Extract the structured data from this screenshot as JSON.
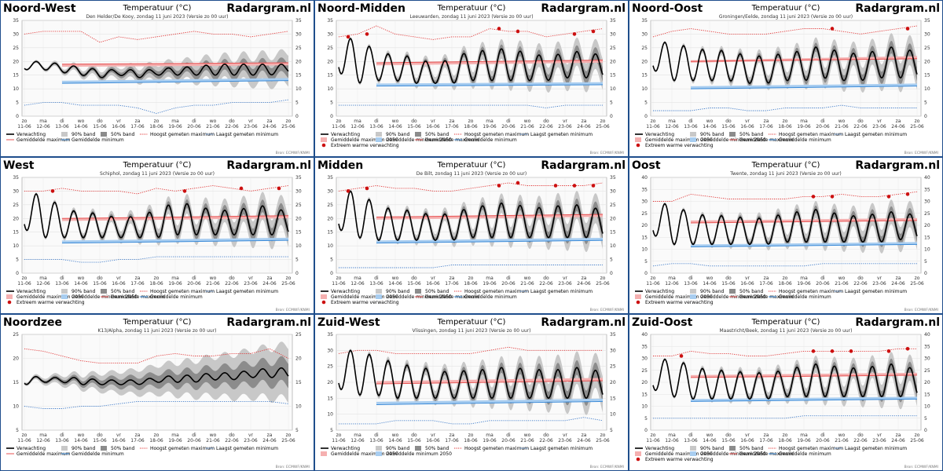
{
  "common": {
    "chart_title": "Temperatuur (°C)",
    "brand": "Radargram.nl",
    "source": "Bron: ECMWF/KNMI",
    "day_labels": [
      "zo",
      "ma",
      "di",
      "wo",
      "do",
      "vr",
      "za",
      "zo",
      "ma",
      "di",
      "wo",
      "do",
      "vr",
      "za",
      "zo"
    ],
    "date_labels": [
      "11-06",
      "12-06",
      "13-06",
      "14-06",
      "15-06",
      "16-06",
      "17-06",
      "18-06",
      "19-06",
      "20-06",
      "21-06",
      "22-06",
      "23-06",
      "24-06",
      "25-06"
    ],
    "legend": {
      "verwachting": "Verwachting",
      "band90": "90% band",
      "band50": "50% band",
      "hoogst": "Hoogst gemeten maximum",
      "laagst": "Laagst gemeten minimum",
      "gem_max_2050": "Gemiddelde maximum 2050",
      "gem_min_2050": "Gemiddelde minimum 2050",
      "gem_max": "Gemiddelde maximum",
      "gem_min": "Gemiddelde minimum",
      "extreem": "Extreem warme verwachting"
    },
    "colors": {
      "forecast": "#000000",
      "band90": "#c8c8c8",
      "band50": "#8c8c8c",
      "record_max": "#e03030",
      "record_min": "#3a78c8",
      "avg_max": "#e85050",
      "avg_min": "#3a8ad8",
      "avg_max_2050": "#f5b0b0",
      "avg_min_2050": "#a8cdf0",
      "extreme": "#cc1010",
      "frame": "#1f4e8c"
    }
  },
  "chart_data": [
    {
      "type": "line",
      "region": "Noord-West",
      "subtitle": "Den Helder/De Kooy, zondag 11 juni 2023 (Versie zo 00 uur)",
      "ylim": [
        0,
        35
      ],
      "yticks": [
        0,
        5,
        10,
        15,
        20,
        25,
        30,
        35
      ],
      "tmax": [
        20,
        20,
        19,
        18,
        17,
        17,
        17,
        17,
        18,
        18,
        19,
        19,
        19,
        19,
        19
      ],
      "tmin": [
        17,
        17,
        16,
        15,
        14,
        15,
        14,
        15,
        15,
        15,
        15,
        15,
        15,
        15,
        16
      ],
      "avg_max": [
        19,
        19.5
      ],
      "avg_min": [
        12,
        13
      ],
      "avg_max_2050": [
        18.5,
        19
      ],
      "avg_min_2050": [
        12.5,
        13.5
      ],
      "record_max": [
        30,
        31,
        31,
        31,
        27,
        29,
        28,
        29,
        30,
        31,
        30,
        30,
        29,
        30,
        31
      ],
      "record_min": [
        4,
        5,
        5,
        4,
        4,
        4,
        3,
        1,
        3,
        4,
        4,
        5,
        5,
        5,
        6
      ],
      "extreme": [],
      "legend_set": "a"
    },
    {
      "type": "line",
      "region": "Noord-Midden",
      "subtitle": "Leeuwarden, zondag 11 juni 2023 (Versie zo 00 uur)",
      "ylim": [
        0,
        35
      ],
      "yticks": [
        0,
        5,
        10,
        15,
        20,
        25,
        30,
        35
      ],
      "tmax": [
        29,
        28,
        24,
        22,
        22,
        19,
        21,
        24,
        24,
        25,
        23,
        22,
        23,
        24,
        22
      ],
      "tmin": [
        16,
        12,
        13,
        13,
        12,
        12,
        12,
        13,
        13,
        13,
        13,
        13,
        14,
        14,
        14
      ],
      "avg_max": [
        19.5,
        20.5
      ],
      "avg_min": [
        11,
        11.5
      ],
      "avg_max_2050": [
        19,
        20
      ],
      "avg_min_2050": [
        11.5,
        12
      ],
      "record_max": [
        29,
        30,
        33,
        30,
        29,
        28,
        29,
        29,
        32,
        31,
        31,
        29,
        30,
        31,
        32
      ],
      "record_min": [
        4,
        4,
        4,
        4,
        4,
        4,
        4,
        4,
        4,
        4,
        4,
        3,
        4,
        4,
        4
      ],
      "extreme": [
        0,
        1,
        8,
        9,
        12,
        13
      ],
      "legend_set": "b"
    },
    {
      "type": "line",
      "region": "Noord-Oost",
      "subtitle": "Groningen/Eelde, zondag 11 juni 2023 (Versie zo 00 uur)",
      "ylim": [
        0,
        35
      ],
      "yticks": [
        0,
        5,
        10,
        15,
        20,
        25,
        30,
        35
      ],
      "tmax": [
        27,
        27,
        25,
        24,
        24,
        22,
        22,
        23,
        24,
        26,
        23,
        23,
        24,
        26,
        23
      ],
      "tmin": [
        17,
        13,
        13,
        13,
        13,
        12,
        12,
        13,
        13,
        14,
        13,
        13,
        14,
        14,
        14
      ],
      "avg_max": [
        20,
        21
      ],
      "avg_min": [
        10,
        11
      ],
      "avg_max_2050": [
        20,
        21.5
      ],
      "avg_min_2050": [
        10.5,
        11.5
      ],
      "record_max": [
        29,
        31,
        32,
        31,
        30,
        30,
        30,
        31,
        32,
        32,
        31,
        30,
        31,
        32,
        33
      ],
      "record_min": [
        2,
        2,
        2,
        3,
        3,
        2,
        2,
        3,
        3,
        3,
        4,
        3,
        3,
        3,
        3
      ],
      "extreme": [
        9,
        13
      ],
      "legend_set": "b"
    },
    {
      "type": "line",
      "region": "West",
      "subtitle": "Schiphol, zondag 11 juni 2023 (Versie zo 00 uur)",
      "ylim": [
        0,
        35
      ],
      "yticks": [
        0,
        5,
        10,
        15,
        20,
        25,
        30,
        35
      ],
      "tmax": [
        29,
        29,
        24,
        22,
        22,
        20,
        21,
        23,
        26,
        25,
        23,
        23,
        24,
        25,
        22
      ],
      "tmin": [
        16,
        13,
        13,
        13,
        13,
        13,
        13,
        13,
        14,
        14,
        14,
        14,
        14,
        14,
        14
      ],
      "avg_max": [
        20,
        21
      ],
      "avg_min": [
        11,
        12
      ],
      "avg_max_2050": [
        19.5,
        20.5
      ],
      "avg_min_2050": [
        11.5,
        12.5
      ],
      "record_max": [
        30,
        30,
        31,
        30,
        30,
        30,
        29,
        31,
        30,
        31,
        32,
        31,
        30,
        31,
        32
      ],
      "record_min": [
        5,
        5,
        5,
        4,
        4,
        5,
        5,
        6,
        6,
        6,
        6,
        6,
        6,
        6,
        6
      ],
      "extreme": [
        1,
        8,
        11,
        13
      ],
      "legend_set": "b"
    },
    {
      "type": "line",
      "region": "Midden",
      "subtitle": "De Bilt, zondag 11 juni 2023 (Versie zo 00 uur)",
      "ylim": [
        0,
        35
      ],
      "yticks": [
        0,
        5,
        10,
        15,
        20,
        25,
        30,
        35
      ],
      "tmax": [
        30,
        30,
        25,
        23,
        23,
        21,
        22,
        24,
        25,
        26,
        24,
        24,
        25,
        25,
        23
      ],
      "tmin": [
        16,
        13,
        12,
        12,
        12,
        12,
        12,
        13,
        13,
        13,
        13,
        13,
        13,
        13,
        13
      ],
      "avg_max": [
        20.5,
        21.5
      ],
      "avg_min": [
        11,
        12
      ],
      "avg_max_2050": [
        20,
        21
      ],
      "avg_min_2050": [
        11.5,
        12.5
      ],
      "record_max": [
        30,
        31,
        32,
        31,
        31,
        30,
        30,
        31,
        32,
        33,
        32,
        32,
        32,
        32,
        33
      ],
      "record_min": [
        2,
        2,
        2,
        2,
        2,
        2,
        3,
        3,
        3,
        3,
        3,
        3,
        3,
        3,
        3
      ],
      "extreme": [
        0,
        1,
        8,
        9,
        11,
        12,
        13
      ],
      "legend_set": "b"
    },
    {
      "type": "line",
      "region": "Oost",
      "subtitle": "Twente, zondag 11 juni 2023 (Versie zo 00 uur)",
      "ylim": [
        0,
        40
      ],
      "yticks": [
        0,
        5,
        10,
        15,
        20,
        25,
        30,
        35,
        40
      ],
      "tmax": [
        29,
        29,
        25,
        24,
        24,
        23,
        23,
        25,
        26,
        27,
        24,
        24,
        25,
        26,
        24
      ],
      "tmin": [
        16,
        12,
        12,
        12,
        12,
        12,
        12,
        13,
        13,
        13,
        13,
        13,
        13,
        14,
        14
      ],
      "avg_max": [
        21,
        22
      ],
      "avg_min": [
        11,
        12
      ],
      "avg_max_2050": [
        21.5,
        22.5
      ],
      "avg_min_2050": [
        11.5,
        12.5
      ],
      "record_max": [
        30,
        30,
        33,
        32,
        31,
        31,
        31,
        31,
        32,
        32,
        33,
        32,
        32,
        33,
        34
      ],
      "record_min": [
        3,
        4,
        4,
        3,
        3,
        3,
        3,
        3,
        3,
        4,
        4,
        4,
        4,
        4,
        4
      ],
      "extreme": [
        8,
        9,
        12,
        13
      ],
      "legend_set": "b"
    },
    {
      "type": "line",
      "region": "Noordzee",
      "subtitle": "K13/Alpha, zondag 11 juni 2023 (Versie zo 00 uur)",
      "ylim": [
        5,
        25
      ],
      "yticks": [
        5,
        10,
        15,
        20,
        25
      ],
      "tmax": [
        16.5,
        16,
        16,
        16,
        15.5,
        15.5,
        15.5,
        16,
        16.5,
        16.5,
        17,
        17,
        17.5,
        18,
        18
      ],
      "tmin": [
        14.5,
        15,
        15,
        14.5,
        14.5,
        14.5,
        14.5,
        15,
        15,
        15,
        15.5,
        15.5,
        16,
        16,
        16
      ],
      "avg_max": [],
      "avg_min": [],
      "avg_max_2050": [],
      "avg_min_2050": [],
      "record_max": [
        22,
        21.5,
        20.5,
        19.5,
        19,
        19,
        19,
        20.5,
        21,
        20.5,
        20.5,
        21,
        21,
        22,
        20
      ],
      "record_min": [
        10,
        9.5,
        9.5,
        10,
        10,
        10.5,
        11,
        11,
        11,
        11,
        11,
        11,
        11,
        11,
        10.5
      ],
      "extreme": [],
      "legend_set": "c"
    },
    {
      "type": "line",
      "region": "Zuid-West",
      "subtitle": "Vlissingen, zondag 11 juni 2023 (Versie zo 00 uur)",
      "ylim": [
        5,
        35
      ],
      "yticks": [
        5,
        10,
        15,
        20,
        25,
        30,
        35
      ],
      "tmax": [
        30,
        30,
        28,
        26,
        25,
        24,
        23,
        24,
        24,
        25,
        24,
        24,
        24,
        25,
        23
      ],
      "tmin": [
        18,
        16,
        16,
        15,
        15,
        15,
        15,
        15,
        15,
        15,
        15,
        15,
        15,
        15,
        15
      ],
      "avg_max": [
        19.5,
        20.5
      ],
      "avg_min": [
        13,
        14
      ],
      "avg_max_2050": [
        20,
        21
      ],
      "avg_min_2050": [
        13.5,
        14.5
      ],
      "record_max": [
        29,
        30,
        30,
        29,
        29,
        29,
        29,
        29,
        30,
        31,
        30,
        30,
        30,
        30,
        30
      ],
      "record_min": [
        7,
        7,
        7,
        8,
        8,
        8,
        7,
        7,
        8,
        8,
        8,
        8,
        8,
        9,
        8
      ],
      "extreme": [],
      "legend_set": "d"
    },
    {
      "type": "line",
      "region": "Zuid-Oost",
      "subtitle": "Maastricht/Beek, zondag 11 juni 2023 (Versie zo 00 uur)",
      "ylim": [
        0,
        40
      ],
      "yticks": [
        0,
        5,
        10,
        15,
        20,
        25,
        30,
        35,
        40
      ],
      "tmax": [
        29,
        30,
        27,
        25,
        25,
        24,
        24,
        25,
        27,
        28,
        26,
        26,
        27,
        28,
        25
      ],
      "tmin": [
        17,
        14,
        13,
        13,
        13,
        13,
        13,
        14,
        14,
        14,
        14,
        14,
        14,
        14,
        14
      ],
      "avg_max": [
        22,
        23
      ],
      "avg_min": [
        12,
        13
      ],
      "avg_max_2050": [
        22.5,
        23.5
      ],
      "avg_min_2050": [
        12.5,
        13.5
      ],
      "record_max": [
        31,
        31,
        33,
        32,
        32,
        31,
        31,
        32,
        33,
        33,
        33,
        33,
        33,
        34,
        34
      ],
      "record_min": [
        5,
        5,
        5,
        5,
        5,
        5,
        5,
        5,
        6,
        6,
        6,
        6,
        6,
        6,
        6
      ],
      "extreme": [
        1,
        8,
        9,
        10,
        12,
        13
      ],
      "legend_set": "b"
    }
  ]
}
